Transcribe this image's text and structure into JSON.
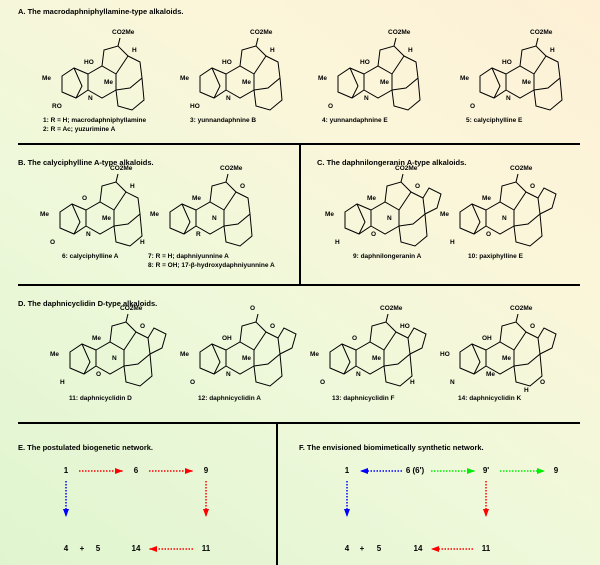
{
  "sections": {
    "A": {
      "title": "A.  The macrodaphniphyllamine-type alkaloids.",
      "compounds": [
        {
          "labels": [
            "1: R = H; macrodaphniphyllamine",
            "2: R = Ac; yuzurimine A"
          ],
          "atoms": [
            "CO2Me",
            "H",
            "HO",
            "Me",
            "Me",
            "N",
            "RO"
          ]
        },
        {
          "labels": [
            "3: yunnandaphnine B"
          ],
          "atoms": [
            "CO2Me",
            "H",
            "HO",
            "Me",
            "Me",
            "N",
            "HO"
          ]
        },
        {
          "labels": [
            "4: yunnandaphnine E"
          ],
          "atoms": [
            "CO2Me",
            "H",
            "HO",
            "Me",
            "Me",
            "N",
            "O"
          ]
        },
        {
          "labels": [
            "5: calyciphylline E"
          ],
          "atoms": [
            "CO2Me",
            "H",
            "HO",
            "Me",
            "Me",
            "N",
            "O"
          ]
        }
      ]
    },
    "B": {
      "title": "B.  The calyciphylline A-type alkaloids.",
      "compounds": [
        {
          "labels": [
            "6: calyciphylline A"
          ],
          "atoms": [
            "CO2Me",
            "H",
            "O",
            "Me",
            "Me",
            "N",
            "O",
            "H"
          ]
        },
        {
          "labels": [
            "7: R = H; daphniyunnine A",
            "8: R = OH; 17-β-hydroxydaphniyunnine A"
          ],
          "atoms": [
            "CO2Me",
            "O",
            "Me",
            "Me",
            "N",
            "R"
          ]
        }
      ]
    },
    "C": {
      "title": "C.  The daphnilongeranin A-type alkaloids.",
      "compounds": [
        {
          "labels": [
            "9: daphnilongeranin A"
          ],
          "atoms": [
            "CO2Me",
            "O",
            "Me",
            "Me",
            "N",
            "O",
            "H"
          ]
        },
        {
          "labels": [
            "10: paxiphylline E"
          ],
          "atoms": [
            "CO2Me",
            "O",
            "Me",
            "Me",
            "N",
            "O",
            "H"
          ]
        }
      ]
    },
    "D": {
      "title": "D.  The daphnicyclidin D-type alkaloids.",
      "compounds": [
        {
          "labels": [
            "11: daphnicyclidin D"
          ],
          "atoms": [
            "CO2Me",
            "O",
            "Me",
            "Me",
            "N",
            "O",
            "H"
          ]
        },
        {
          "labels": [
            "12: daphnicyclidin A"
          ],
          "atoms": [
            "O",
            "O",
            "OH",
            "Me",
            "Me",
            "N",
            "O"
          ]
        },
        {
          "labels": [
            "13: daphnicyclidin F"
          ],
          "atoms": [
            "CO2Me",
            "HO",
            "O",
            "Me",
            "Me",
            "N",
            "O",
            "H"
          ]
        },
        {
          "labels": [
            "14: daphnicyclidin K"
          ],
          "atoms": [
            "CO2Me",
            "O",
            "OH",
            "HO",
            "Me",
            "Me",
            "N",
            "O",
            "H"
          ]
        }
      ]
    },
    "E": {
      "title": "E.  The postulated biogenetic network.",
      "nodes": [
        "1",
        "6",
        "9",
        "4",
        "+",
        "5",
        "14",
        "11"
      ]
    },
    "F": {
      "title": "F.  The envisioned biomimetically synthetic network.",
      "nodes": [
        "1",
        "6 (6')",
        "9'",
        "9",
        "4",
        "+",
        "5",
        "14",
        "11"
      ]
    }
  },
  "colors": {
    "red": "#ff0000",
    "blue": "#0000ff",
    "green": "#00ee00"
  }
}
